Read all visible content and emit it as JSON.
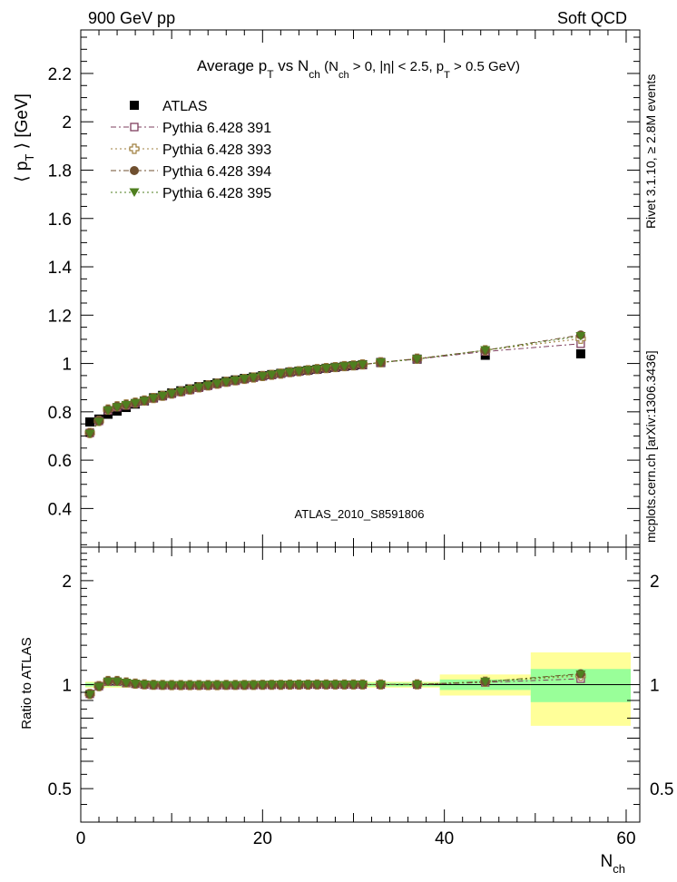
{
  "header": {
    "left": "900 GeV pp",
    "right": "Soft QCD"
  },
  "side_labels": {
    "rivet": "Rivet 3.1.10, ≥ 2.8M events",
    "mcplots": "mcplots.cern.ch [arXiv:1306.3436]"
  },
  "chart_data": {
    "type": "scatter",
    "title_parts": {
      "t1": "Average p",
      "t2": "T",
      "t3": " vs N",
      "t4": "ch",
      "t5": " (N",
      "t6": "ch",
      "t7": " > 0, |η| < 2.5, p",
      "t8": "T",
      "t9": " > 0.5 GeV)"
    },
    "watermark": "ATLAS_2010_S8591806",
    "xlabel_parts": {
      "main": "N",
      "sub": "ch"
    },
    "ylabel_parts": {
      "open": "⟨ p",
      "sub": "T",
      "close": " ⟩ [GeV]"
    },
    "ratio_ylabel": "Ratio to ATLAS",
    "xlim": [
      0,
      61.5
    ],
    "ylim": [
      0.24,
      2.38
    ],
    "ratio_ylim": [
      0.4,
      2.5
    ],
    "ratio_log": true,
    "x_ticks": [
      {
        "v": 0,
        "label": "0"
      },
      {
        "v": 20,
        "label": "20"
      },
      {
        "v": 40,
        "label": "40"
      },
      {
        "v": 60,
        "label": "60"
      }
    ],
    "y_ticks": [
      {
        "v": 0.4,
        "label": "0.4"
      },
      {
        "v": 0.6,
        "label": "0.6"
      },
      {
        "v": 0.8,
        "label": "0.8"
      },
      {
        "v": 1.0,
        "label": "1"
      },
      {
        "v": 1.2,
        "label": "1.2"
      },
      {
        "v": 1.4,
        "label": "1.4"
      },
      {
        "v": 1.6,
        "label": "1.6"
      },
      {
        "v": 1.8,
        "label": "1.8"
      },
      {
        "v": 2.0,
        "label": "2"
      },
      {
        "v": 2.2,
        "label": "2.2"
      }
    ],
    "ratio_ticks": [
      {
        "v": 0.5,
        "label": "0.5"
      },
      {
        "v": 1,
        "label": "1"
      },
      {
        "v": 2,
        "label": "2"
      }
    ],
    "x": [
      1,
      2,
      3,
      4,
      5,
      6,
      7,
      8,
      9,
      10,
      11,
      12,
      13,
      14,
      15,
      16,
      17,
      18,
      19,
      20,
      21,
      22,
      23,
      24,
      25,
      26,
      27,
      28,
      29,
      30,
      31,
      33,
      37,
      44.5,
      55
    ],
    "atlas": {
      "name": "ATLAS",
      "color": "#000000",
      "values": [
        0.758,
        0.77,
        0.79,
        0.803,
        0.818,
        0.832,
        0.845,
        0.858,
        0.868,
        0.878,
        0.887,
        0.895,
        0.904,
        0.912,
        0.919,
        0.926,
        0.932,
        0.938,
        0.944,
        0.949,
        0.954,
        0.959,
        0.964,
        0.968,
        0.972,
        0.976,
        0.98,
        0.984,
        0.988,
        0.991,
        0.995,
        1.004,
        1.018,
        1.034,
        1.04
      ],
      "band_edges": [
        0.5,
        39.5,
        49.5,
        60.5
      ],
      "band_stat_rel": [
        0.012,
        0.035,
        0.11
      ],
      "band_tot_rel": [
        0.02,
        0.07,
        0.24
      ],
      "band_stat_color": "#99ff99",
      "band_tot_color": "#ffff99"
    },
    "series": [
      {
        "name": "Pythia 6.428 391",
        "color": "#7f3f5f",
        "marker": "open-square",
        "dash": "6,3,2,3",
        "ratio": [
          0.94,
          0.99,
          1.02,
          1.02,
          1.01,
          1.005,
          1.0,
          0.997,
          0.996,
          0.996,
          0.995,
          0.995,
          0.995,
          0.995,
          0.996,
          0.996,
          0.996,
          0.997,
          0.997,
          0.998,
          0.998,
          0.999,
          0.999,
          0.999,
          1.0,
          1.0,
          1.0,
          1.0,
          1.0,
          1.0,
          1.0,
          1.0,
          1.0,
          1.015,
          1.04
        ]
      },
      {
        "name": "Pythia 6.428 393",
        "color": "#9f7f3f",
        "marker": "open-cross",
        "dash": "2,3",
        "ratio": [
          0.94,
          0.99,
          1.025,
          1.025,
          1.015,
          1.007,
          1.002,
          0.999,
          0.998,
          0.997,
          0.997,
          0.997,
          0.997,
          0.997,
          0.997,
          0.998,
          0.998,
          0.998,
          0.998,
          0.999,
          0.999,
          0.999,
          1.0,
          1.0,
          1.0,
          1.001,
          1.001,
          1.001,
          1.001,
          1.001,
          1.001,
          1.001,
          1.002,
          1.02,
          1.06
        ]
      },
      {
        "name": "Pythia 6.428 394",
        "color": "#6f4f2f",
        "marker": "filled-circle",
        "dash": "6,3,2,3",
        "ratio": [
          0.94,
          0.99,
          1.025,
          1.025,
          1.015,
          1.007,
          1.002,
          0.999,
          0.998,
          0.997,
          0.997,
          0.997,
          0.997,
          0.997,
          0.997,
          0.998,
          0.998,
          0.998,
          0.998,
          0.999,
          0.999,
          0.999,
          1.0,
          1.0,
          1.0,
          1.001,
          1.001,
          1.001,
          1.001,
          1.001,
          1.001,
          1.001,
          1.002,
          1.02,
          1.075
        ]
      },
      {
        "name": "Pythia 6.428 395",
        "color": "#4f7f1f",
        "marker": "filled-triangle-down",
        "dash": "2,3",
        "ratio": [
          0.935,
          0.985,
          1.02,
          1.02,
          1.012,
          1.005,
          1.0,
          0.998,
          0.997,
          0.996,
          0.996,
          0.996,
          0.996,
          0.996,
          0.997,
          0.997,
          0.997,
          0.998,
          0.998,
          0.998,
          0.999,
          0.999,
          0.999,
          1.0,
          1.0,
          1.0,
          1.0,
          1.0,
          1.0,
          1.0,
          1.0,
          1.0,
          1.0,
          1.02,
          1.07
        ]
      }
    ]
  }
}
